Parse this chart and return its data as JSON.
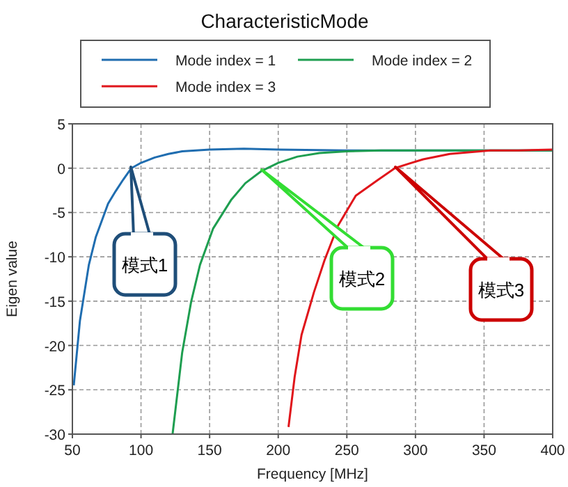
{
  "chart_data": {
    "type": "line",
    "title": "CharacteristicMode",
    "xlabel": "Frequency [MHz]",
    "ylabel": "Eigen value",
    "xlim": [
      50,
      400
    ],
    "ylim": [
      -30,
      5
    ],
    "xticks": [
      50,
      100,
      150,
      200,
      250,
      300,
      350,
      400
    ],
    "yticks": [
      -30,
      -25,
      -20,
      -15,
      -10,
      -5,
      0,
      5
    ],
    "grid": true,
    "legend": "top",
    "line_style": "solid",
    "marker": "none",
    "series": [
      {
        "name": "Mode index = 1",
        "color": "#1f6db0",
        "x": [
          51,
          55.5,
          62,
          67,
          72,
          76,
          81.5,
          87,
          93,
          100,
          110,
          120,
          130,
          140,
          150,
          175,
          200,
          250,
          300,
          350,
          400
        ],
        "values": [
          -24.5,
          -17.2,
          -10.9,
          -7.8,
          -5.7,
          -4.0,
          -2.6,
          -1.3,
          0,
          0.6,
          1.2,
          1.6,
          1.9,
          2.0,
          2.1,
          2.2,
          2.1,
          2.0,
          2.0,
          2.0,
          2.0
        ]
      },
      {
        "name": "Mode index = 2",
        "color": "#1e9e50",
        "x": [
          123,
          130,
          136.5,
          143,
          152.6,
          165.6,
          176,
          188,
          200,
          214,
          230,
          250,
          275,
          300,
          350,
          400
        ],
        "values": [
          -30,
          -20.8,
          -15.1,
          -10.9,
          -6.8,
          -3.6,
          -1.7,
          -0.3,
          0.6,
          1.3,
          1.7,
          1.9,
          2.0,
          2.0,
          2.0,
          2.0
        ]
      },
      {
        "name": "Mode index = 3",
        "color": "#e0151b",
        "x": [
          207.5,
          212,
          217,
          226,
          233.7,
          243.5,
          256.5,
          272.9,
          285,
          295,
          305.6,
          325,
          354.6,
          375,
          400
        ],
        "values": [
          -29.2,
          -23.5,
          -18.8,
          -14,
          -10.4,
          -6.5,
          -3.1,
          -1.3,
          0,
          0.5,
          1.0,
          1.6,
          2.0,
          2.0,
          2.1
        ]
      }
    ],
    "annotations": [
      "模式1",
      "模式2",
      "模式3"
    ]
  }
}
